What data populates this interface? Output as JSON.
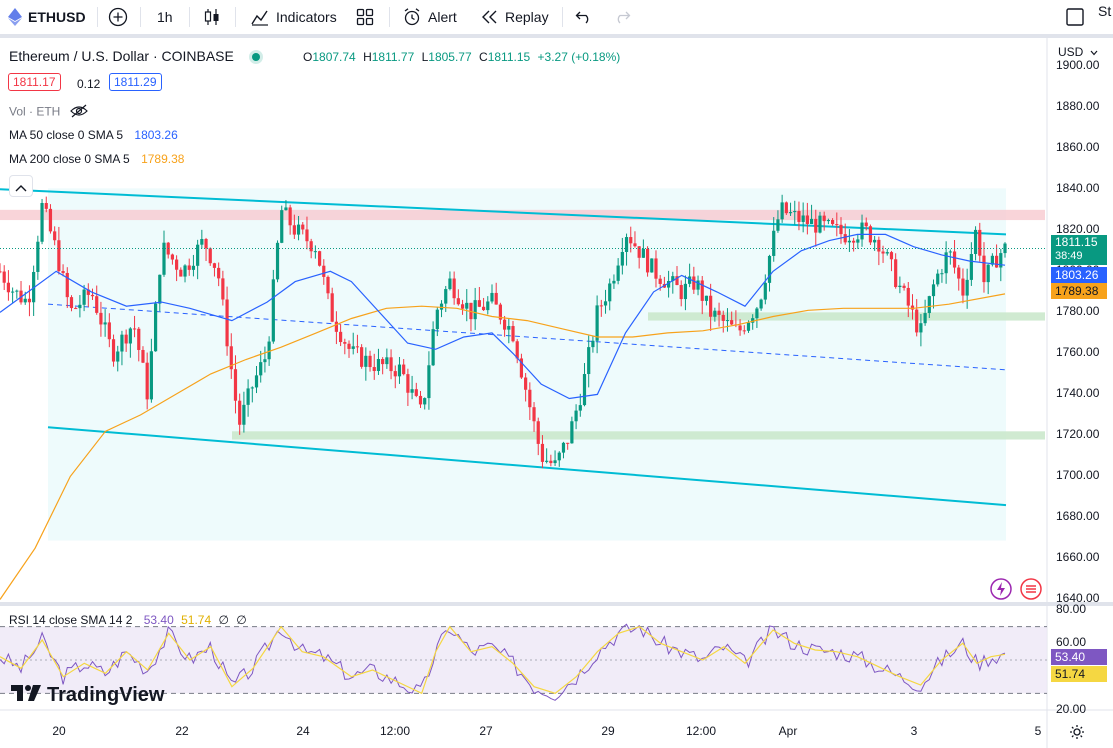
{
  "toolbar": {
    "symbol": "ETHUSD",
    "interval": "1h",
    "indicators": "Indicators",
    "alert": "Alert",
    "replay": "Replay",
    "right_partial": "St"
  },
  "header": {
    "title": "Ethereum / U.S. Dollar · COINBASE",
    "o_label": "O",
    "o_value": "1807.74",
    "h_label": "H",
    "h_value": "1811.77",
    "l_label": "L",
    "l_value": "1805.77",
    "c_label": "C",
    "c_value": "1811.15",
    "change": "+3.27 (+0.18%)",
    "bid": "1811.17",
    "spread": "0.12",
    "ask": "1811.29"
  },
  "indicators": {
    "vol_label": "Vol · ETH",
    "ma50_label": "MA 50 close 0 SMA 5",
    "ma50_value": "1803.26",
    "ma200_label": "MA 200 close 0 SMA 5",
    "ma200_value": "1789.38",
    "rsi_label": "RSI 14 close SMA 14 2",
    "rsi_value": "53.40",
    "rsi_sma_value": "51.74",
    "rsi_extra1": "∅",
    "rsi_extra2": "∅"
  },
  "price_axis": {
    "currency": "USD",
    "ticks": [
      "1900.00",
      "1880.00",
      "1860.00",
      "1840.00",
      "1820.00",
      "1800.00",
      "1780.00",
      "1760.00",
      "1740.00",
      "1720.00",
      "1700.00",
      "1680.00",
      "1660.00",
      "1640.00"
    ],
    "last_price": "1811.15",
    "countdown": "38:49",
    "ma50_tag": "1803.26",
    "ma200_tag": "1789.38"
  },
  "rsi_axis": {
    "ticks": [
      "80.00",
      "60.00",
      "40.00",
      "20.00"
    ],
    "rsi_tag": "53.40",
    "sma_tag": "51.74"
  },
  "time_axis": {
    "labels": [
      "20",
      "22",
      "24",
      "12:00",
      "27",
      "29",
      "12:00",
      "Apr",
      "3",
      "5"
    ]
  },
  "watermark": "TradingView",
  "colors": {
    "up": "#089981",
    "down": "#f23645",
    "ma50": "#2962ff",
    "ma200": "#f7a21b",
    "channel": "#00bcd4",
    "rsi": "#7e57c2",
    "rsi_sma": "#f5d742"
  },
  "chart_data": {
    "type": "candlestick",
    "symbol": "ETHUSD",
    "timeframe": "1h",
    "ylim": [
      1630,
      1905
    ],
    "last_close": 1811.15,
    "channel": {
      "upper": [
        [
          0.0,
          1840
        ],
        [
          1.0,
          1818
        ]
      ],
      "lower": [
        [
          0.05,
          1724
        ],
        [
          1.0,
          1686
        ]
      ],
      "midline": [
        [
          0.05,
          1784
        ],
        [
          1.0,
          1752
        ]
      ]
    },
    "resistance_zone": [
      1825,
      1830
    ],
    "support_zones": [
      [
        1776,
        1780
      ],
      [
        1718,
        1722
      ]
    ],
    "price_path": [
      [
        0.0,
        1800
      ],
      [
        0.02,
        1790
      ],
      [
        0.04,
        1785
      ],
      [
        0.06,
        1832
      ],
      [
        0.08,
        1810
      ],
      [
        0.1,
        1780
      ],
      [
        0.13,
        1790
      ],
      [
        0.16,
        1760
      ],
      [
        0.19,
        1775
      ],
      [
        0.21,
        1740
      ],
      [
        0.23,
        1812
      ],
      [
        0.26,
        1800
      ],
      [
        0.29,
        1815
      ],
      [
        0.31,
        1800
      ],
      [
        0.34,
        1725
      ],
      [
        0.36,
        1745
      ],
      [
        0.38,
        1760
      ],
      [
        0.4,
        1830
      ],
      [
        0.42,
        1820
      ],
      [
        0.45,
        1812
      ],
      [
        0.47,
        1780
      ],
      [
        0.5,
        1760
      ],
      [
        0.53,
        1755
      ],
      [
        0.57,
        1752
      ],
      [
        0.6,
        1730
      ],
      [
        0.62,
        1780
      ],
      [
        0.64,
        1795
      ],
      [
        0.67,
        1780
      ],
      [
        0.7,
        1785
      ],
      [
        0.73,
        1770
      ],
      [
        0.75,
        1740
      ],
      [
        0.77,
        1710
      ],
      [
        0.79,
        1705
      ],
      [
        0.81,
        1720
      ],
      [
        0.83,
        1745
      ],
      [
        0.85,
        1780
      ],
      [
        0.87,
        1795
      ],
      [
        0.89,
        1820
      ],
      [
        0.91,
        1810
      ],
      [
        0.93,
        1800
      ],
      [
        0.95,
        1795
      ],
      [
        0.97,
        1790
      ],
      [
        0.99,
        1795
      ],
      [
        1.01,
        1780
      ],
      [
        1.03,
        1775
      ],
      [
        1.05,
        1770
      ],
      [
        1.08,
        1785
      ],
      [
        1.11,
        1830
      ],
      [
        1.14,
        1825
      ],
      [
        1.17,
        1822
      ],
      [
        1.2,
        1818
      ],
      [
        1.23,
        1820
      ],
      [
        1.25,
        1815
      ],
      [
        1.27,
        1800
      ],
      [
        1.29,
        1785
      ],
      [
        1.31,
        1770
      ],
      [
        1.33,
        1795
      ],
      [
        1.35,
        1810
      ],
      [
        1.37,
        1790
      ],
      [
        1.39,
        1822
      ],
      [
        1.4,
        1795
      ],
      [
        1.42,
        1808
      ],
      [
        1.43,
        1811
      ]
    ],
    "ma50_path": [
      [
        0.0,
        1780
      ],
      [
        0.04,
        1790
      ],
      [
        0.08,
        1800
      ],
      [
        0.13,
        1790
      ],
      [
        0.18,
        1783
      ],
      [
        0.23,
        1785
      ],
      [
        0.27,
        1782
      ],
      [
        0.33,
        1776
      ],
      [
        0.38,
        1785
      ],
      [
        0.42,
        1795
      ],
      [
        0.47,
        1800
      ],
      [
        0.5,
        1795
      ],
      [
        0.54,
        1780
      ],
      [
        0.58,
        1765
      ],
      [
        0.62,
        1762
      ],
      [
        0.66,
        1768
      ],
      [
        0.7,
        1770
      ],
      [
        0.73,
        1760
      ],
      [
        0.77,
        1745
      ],
      [
        0.81,
        1738
      ],
      [
        0.85,
        1740
      ],
      [
        0.89,
        1770
      ],
      [
        0.93,
        1790
      ],
      [
        0.97,
        1798
      ],
      [
        1.02,
        1790
      ],
      [
        1.06,
        1783
      ],
      [
        1.1,
        1800
      ],
      [
        1.14,
        1810
      ],
      [
        1.18,
        1815
      ],
      [
        1.22,
        1818
      ],
      [
        1.26,
        1818
      ],
      [
        1.3,
        1812
      ],
      [
        1.34,
        1808
      ],
      [
        1.38,
        1805
      ],
      [
        1.43,
        1803
      ]
    ],
    "ma200_path": [
      [
        0.0,
        1640
      ],
      [
        0.05,
        1665
      ],
      [
        0.1,
        1700
      ],
      [
        0.15,
        1722
      ],
      [
        0.2,
        1730
      ],
      [
        0.25,
        1740
      ],
      [
        0.3,
        1750
      ],
      [
        0.35,
        1757
      ],
      [
        0.4,
        1763
      ],
      [
        0.45,
        1770
      ],
      [
        0.5,
        1777
      ],
      [
        0.55,
        1782
      ],
      [
        0.6,
        1783
      ],
      [
        0.65,
        1782
      ],
      [
        0.7,
        1778
      ],
      [
        0.75,
        1776
      ],
      [
        0.8,
        1772
      ],
      [
        0.85,
        1768
      ],
      [
        0.9,
        1768
      ],
      [
        0.95,
        1770
      ],
      [
        1.0,
        1771
      ],
      [
        1.05,
        1774
      ],
      [
        1.1,
        1778
      ],
      [
        1.15,
        1781
      ],
      [
        1.2,
        1782
      ],
      [
        1.25,
        1782
      ],
      [
        1.3,
        1782
      ],
      [
        1.35,
        1784
      ],
      [
        1.43,
        1789
      ]
    ],
    "rsi": {
      "ylim": [
        20,
        80
      ],
      "bands": [
        70,
        30
      ],
      "middle": 50,
      "last": 53.4,
      "sma_last": 51.74,
      "path": [
        [
          0.0,
          52
        ],
        [
          0.03,
          45
        ],
        [
          0.06,
          62
        ],
        [
          0.09,
          40
        ],
        [
          0.12,
          48
        ],
        [
          0.15,
          42
        ],
        [
          0.18,
          55
        ],
        [
          0.21,
          44
        ],
        [
          0.24,
          66
        ],
        [
          0.27,
          50
        ],
        [
          0.3,
          58
        ],
        [
          0.33,
          34
        ],
        [
          0.36,
          45
        ],
        [
          0.4,
          70
        ],
        [
          0.43,
          55
        ],
        [
          0.46,
          52
        ],
        [
          0.5,
          40
        ],
        [
          0.53,
          44
        ],
        [
          0.56,
          38
        ],
        [
          0.6,
          30
        ],
        [
          0.62,
          55
        ],
        [
          0.64,
          70
        ],
        [
          0.67,
          55
        ],
        [
          0.7,
          58
        ],
        [
          0.73,
          48
        ],
        [
          0.76,
          34
        ],
        [
          0.79,
          30
        ],
        [
          0.82,
          40
        ],
        [
          0.85,
          55
        ],
        [
          0.88,
          66
        ],
        [
          0.91,
          70
        ],
        [
          0.94,
          60
        ],
        [
          0.97,
          55
        ],
        [
          1.0,
          50
        ],
        [
          1.03,
          58
        ],
        [
          1.06,
          48
        ],
        [
          1.1,
          68
        ],
        [
          1.13,
          60
        ],
        [
          1.16,
          56
        ],
        [
          1.19,
          55
        ],
        [
          1.22,
          52
        ],
        [
          1.25,
          46
        ],
        [
          1.28,
          40
        ],
        [
          1.31,
          35
        ],
        [
          1.34,
          50
        ],
        [
          1.37,
          60
        ],
        [
          1.39,
          48
        ],
        [
          1.41,
          52
        ],
        [
          1.43,
          53.4
        ]
      ]
    }
  }
}
